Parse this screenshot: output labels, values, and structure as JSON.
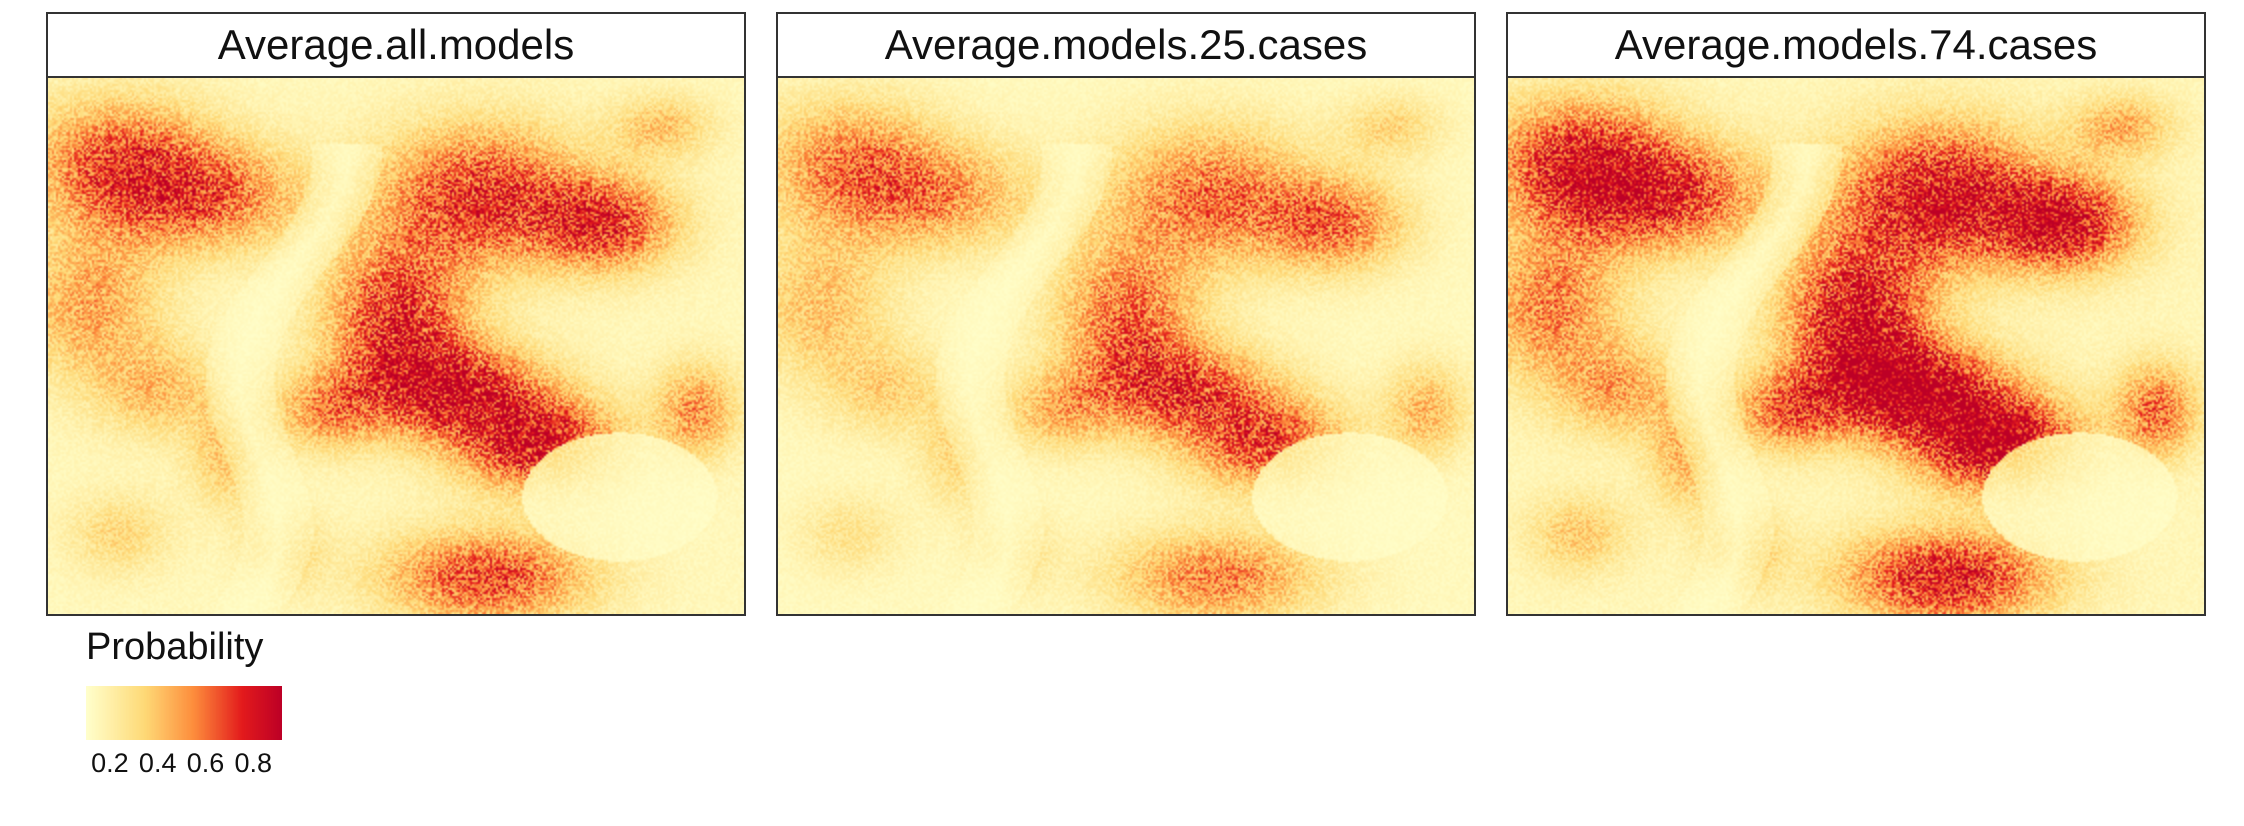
{
  "chart_data": {
    "type": "heatmap",
    "facets": [
      {
        "title": "Average.all.models",
        "intensity": 1.0
      },
      {
        "title": "Average.models.25.cases",
        "intensity": 0.78
      },
      {
        "title": "Average.models.74.cases",
        "intensity": 1.22
      }
    ],
    "legend": {
      "title": "Probability",
      "ticks": [
        "0.2",
        "0.4",
        "0.6",
        "0.8"
      ],
      "tick_values": [
        0.2,
        0.4,
        0.6,
        0.8
      ],
      "range": [
        0.1,
        0.92
      ],
      "placement": "bottom-left"
    },
    "colors": {
      "low": "#FFFFCC",
      "mid_low": "#FED976",
      "mid": "#FD8D3C",
      "mid_high": "#E31A1C",
      "high": "#BD0026"
    }
  }
}
